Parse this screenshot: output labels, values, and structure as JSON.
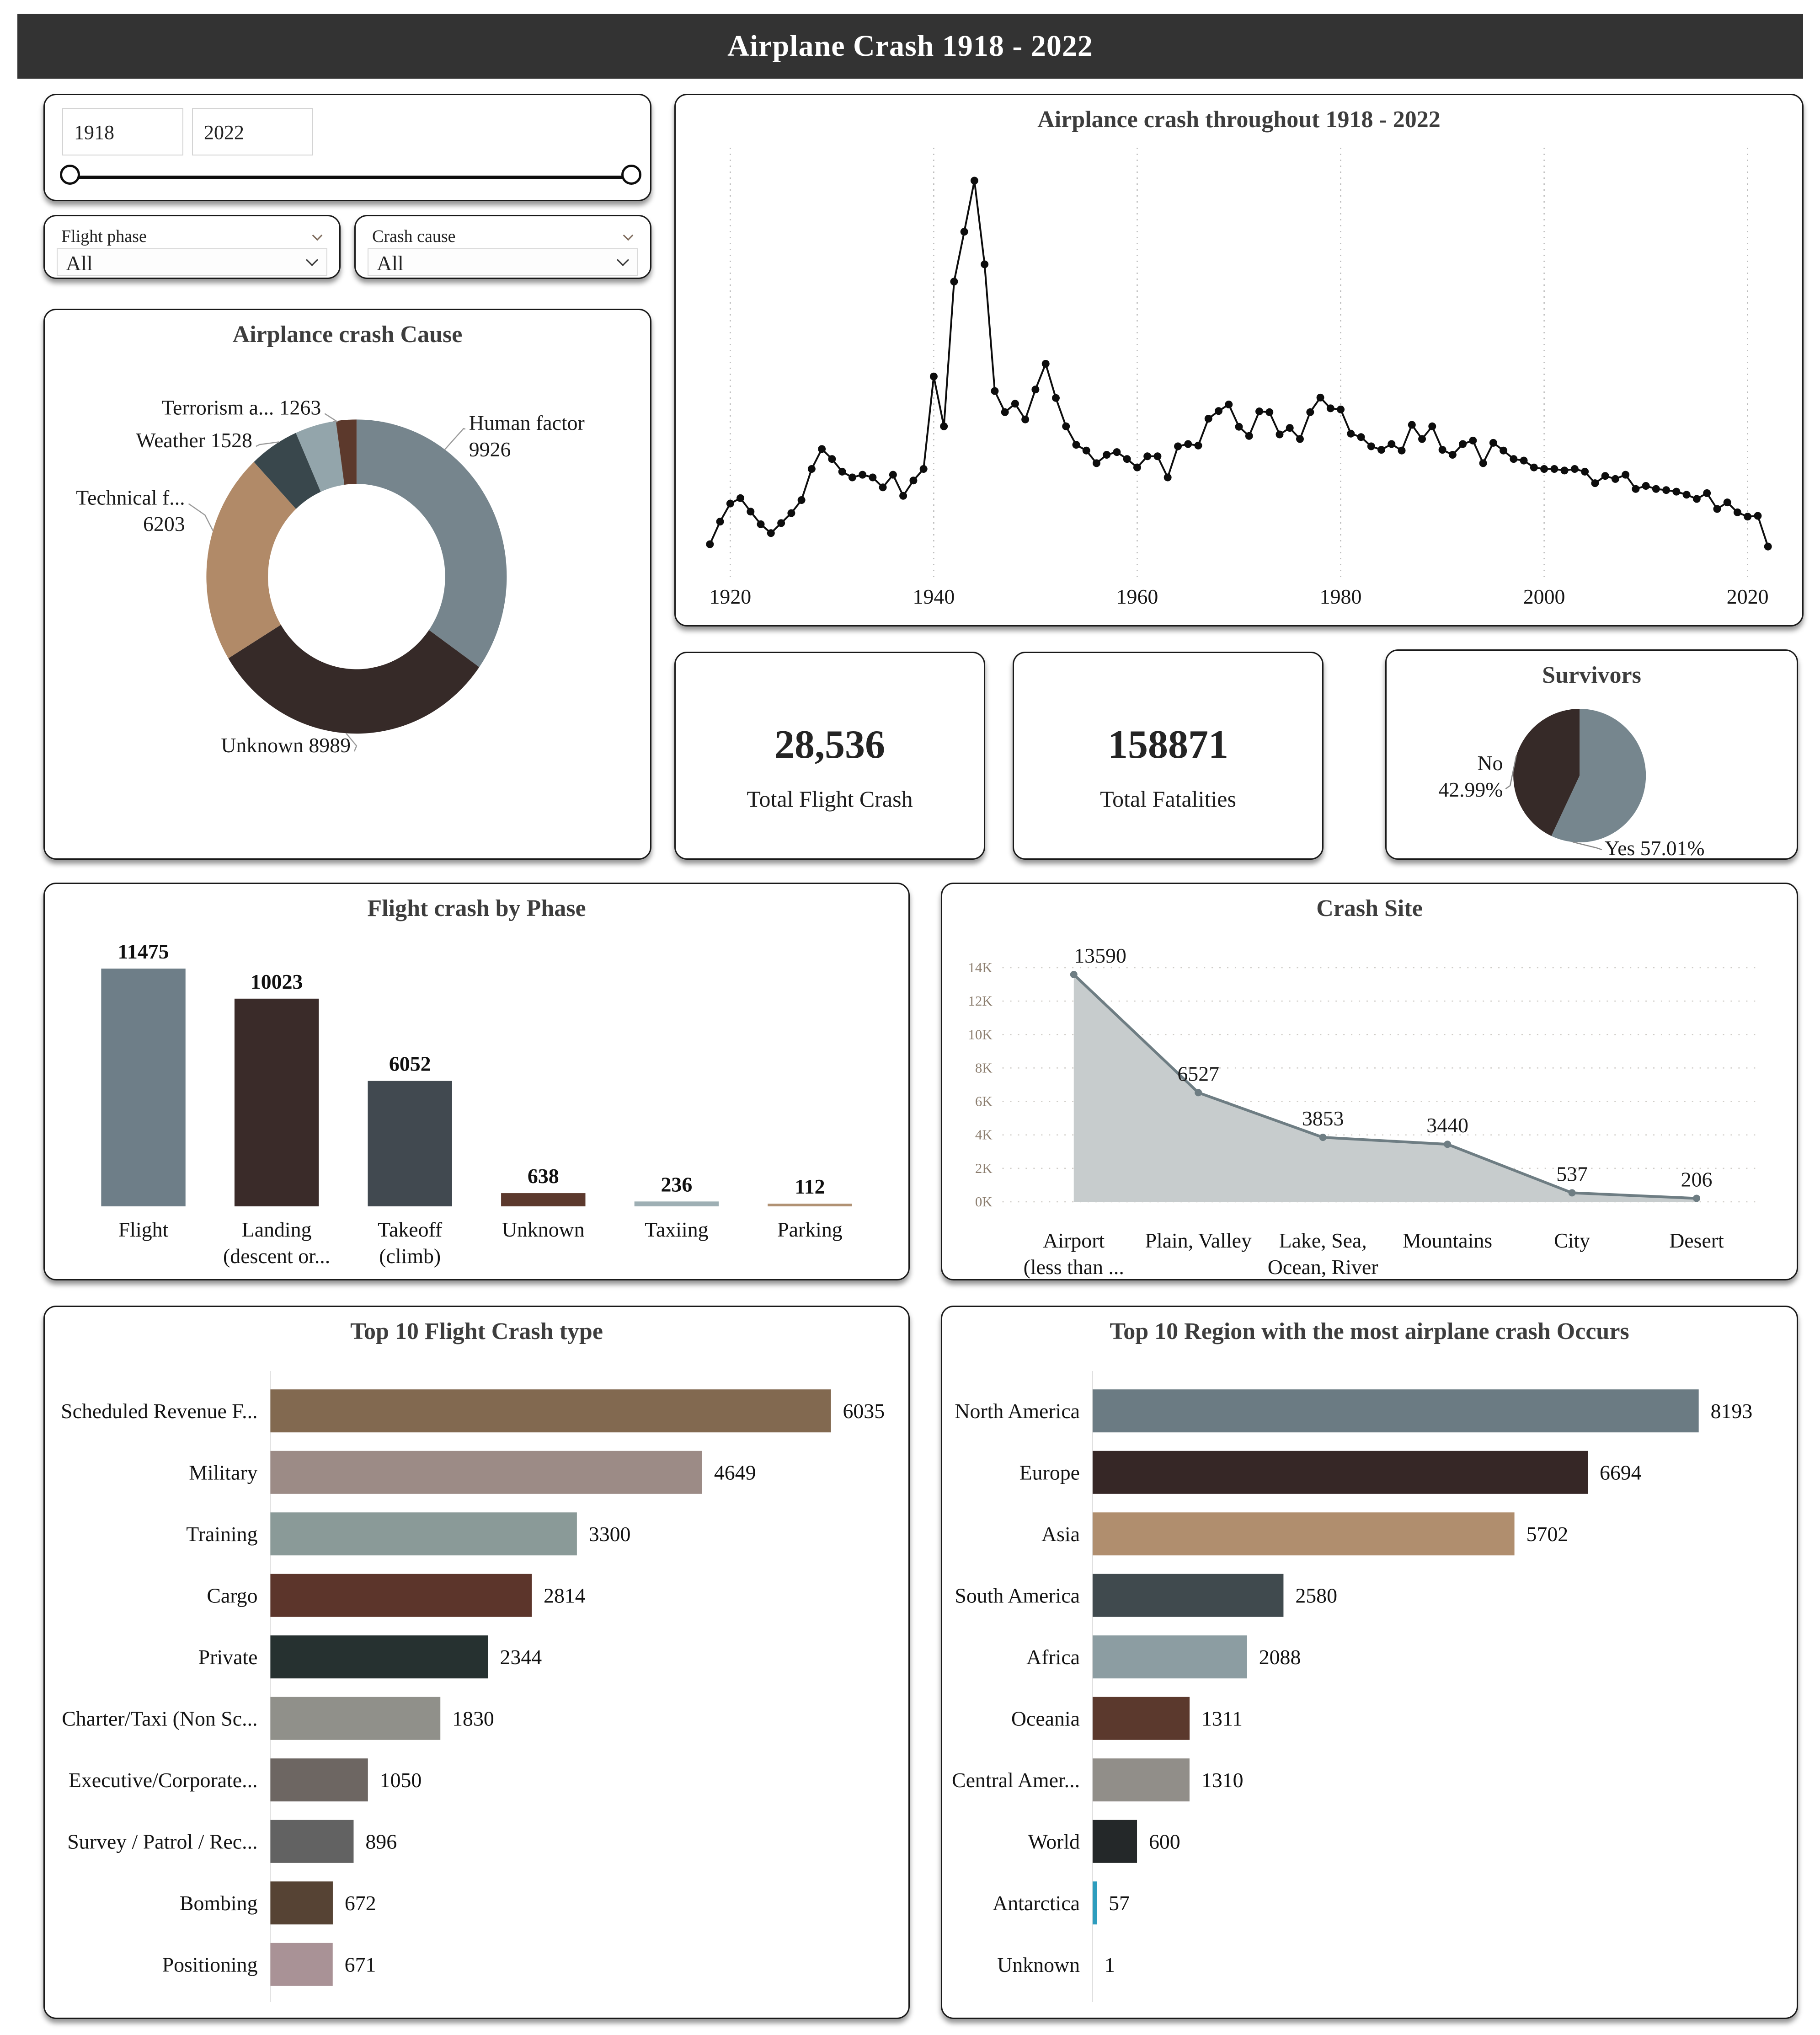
{
  "header": {
    "title": "Airplane Crash 1918 - 2022"
  },
  "filters": {
    "year_range": {
      "min": "1918",
      "max": "2022"
    },
    "flight_phase": {
      "label": "Flight phase",
      "value": "All"
    },
    "crash_cause": {
      "label": "Crash cause",
      "value": "All"
    }
  },
  "kpis": {
    "total_crash": {
      "value": "28,536",
      "label": "Total Flight Crash"
    },
    "total_fatalities": {
      "value": "158871",
      "label": "Total Fatalities"
    }
  },
  "chart_data": [
    {
      "id": "cause_donut",
      "type": "pie",
      "donut": true,
      "title": "Airplance crash Cause",
      "slices": [
        {
          "label": "Human factor",
          "value": 9926,
          "color": "#76858d",
          "display": [
            "Human factor",
            "9926"
          ]
        },
        {
          "label": "Unknown",
          "value": 8989,
          "color": "#362a28",
          "display": [
            "Unknown 8989"
          ]
        },
        {
          "label": "Technical f...",
          "value": 6203,
          "color": "#b18a68",
          "display": [
            "Technical f...",
            "6203"
          ]
        },
        {
          "label": "Weather",
          "value": 1528,
          "color": "#39474c",
          "display": [
            "Weather 1528"
          ]
        },
        {
          "label": "Terrorism a...",
          "value": 1263,
          "color": "#93a5ab",
          "display": [
            "Terrorism a... 1263"
          ]
        },
        {
          "label": "",
          "value": 627,
          "color": "#5c392c",
          "display": []
        }
      ]
    },
    {
      "id": "yearly_line",
      "type": "line",
      "title": "Airplance crash throughout 1918 - 2022",
      "x_start": 1918,
      "x_end": 2022,
      "x_ticks": [
        1920,
        1940,
        1960,
        1980,
        2000,
        2020
      ],
      "ylim": [
        0,
        1060
      ],
      "grid": "dotted-vertical",
      "color": "#0d0d0d",
      "values": [
        63,
        122,
        169,
        183,
        148,
        115,
        92,
        118,
        144,
        178,
        259,
        311,
        285,
        252,
        237,
        244,
        237,
        211,
        244,
        189,
        229,
        259,
        500,
        370,
        747,
        877,
        1010,
        792,
        462,
        407,
        429,
        388,
        466,
        533,
        444,
        370,
        322,
        307,
        274,
        296,
        303,
        285,
        263,
        292,
        292,
        237,
        318,
        324,
        320,
        390,
        410,
        427,
        369,
        345,
        409,
        407,
        349,
        366,
        337,
        407,
        445,
        417,
        414,
        351,
        342,
        318,
        309,
        324,
        307,
        374,
        337,
        370,
        309,
        296,
        324,
        333,
        274,
        327,
        307,
        285,
        281,
        263,
        259,
        259,
        255,
        259,
        252,
        222,
        241,
        233,
        244,
        207,
        215,
        207,
        204,
        200,
        192,
        181,
        196,
        155,
        172,
        146,
        135,
        137,
        57
      ]
    },
    {
      "id": "survivors_pie",
      "type": "pie",
      "title": "Survivors",
      "slices": [
        {
          "label": "Yes",
          "pct": 57.01,
          "color": "#76868e",
          "display": [
            "Yes 57.01%"
          ]
        },
        {
          "label": "No",
          "pct": 42.99,
          "color": "#362a28",
          "display": [
            "No",
            "42.99%"
          ]
        }
      ]
    },
    {
      "id": "phase_bar",
      "type": "bar",
      "title": "Flight crash by Phase",
      "categories": [
        [
          "Flight"
        ],
        [
          "Landing",
          "(descent or..."
        ],
        [
          "Takeoff",
          "(climb)"
        ],
        [
          "Unknown"
        ],
        [
          "Taxiing"
        ],
        [
          "Parking"
        ]
      ],
      "values": [
        11475,
        10023,
        6052,
        638,
        236,
        112
      ],
      "colors": [
        "#6e7e88",
        "#3a2b29",
        "#414950",
        "#5c392d",
        "#9eafb4",
        "#b19274"
      ],
      "ylim": [
        0,
        12400
      ]
    },
    {
      "id": "site_area",
      "type": "area",
      "title": "Crash Site",
      "categories": [
        [
          "Airport",
          "(less than ..."
        ],
        [
          "Plain, Valley"
        ],
        [
          "Lake, Sea,",
          "Ocean, River"
        ],
        [
          "Mountains"
        ],
        [
          "City"
        ],
        [
          "Desert"
        ]
      ],
      "values": [
        13590,
        6527,
        3853,
        3440,
        537,
        206
      ],
      "y_ticks": [
        "0K",
        "2K",
        "4K",
        "6K",
        "8K",
        "10K",
        "12K",
        "14K"
      ],
      "ylim": [
        0,
        14000
      ],
      "line_color": "#6e7d83",
      "fill_color": "#c7cccd"
    },
    {
      "id": "type_hbar",
      "type": "hbar",
      "title": "Top 10 Flight Crash type",
      "categories": [
        "Scheduled Revenue F...",
        "Military",
        "Training",
        "Cargo",
        "Private",
        "Charter/Taxi (Non Sc...",
        "Executive/Corporate...",
        "Survey / Patrol / Rec...",
        "Bombing",
        "Positioning"
      ],
      "values": [
        6035,
        4649,
        3300,
        2814,
        2344,
        1830,
        1050,
        896,
        672,
        671
      ],
      "colors": [
        "#826950",
        "#9c8b86",
        "#8a9a98",
        "#5c352b",
        "#263130",
        "#90908a",
        "#6d6662",
        "#626262",
        "#564334",
        "#a99296"
      ],
      "xlim": [
        0,
        6700
      ]
    },
    {
      "id": "region_hbar",
      "type": "hbar",
      "title": "Top 10 Region with the most airplane crash Occurs",
      "categories": [
        "North America",
        "Europe",
        "Asia",
        "South America",
        "Africa",
        "Oceania",
        "Central Amer...",
        "World",
        "Antarctica",
        "Unknown"
      ],
      "values": [
        8193,
        6694,
        5702,
        2580,
        2088,
        1311,
        1310,
        600,
        57,
        1
      ],
      "colors": [
        "#6b7b83",
        "#362726",
        "#b08e6e",
        "#404a4e",
        "#8c9da2",
        "#5b392d",
        "#918e89",
        "#242829",
        "#2d9dbe",
        "#cccccc"
      ],
      "xlim": [
        0,
        9100
      ]
    }
  ]
}
